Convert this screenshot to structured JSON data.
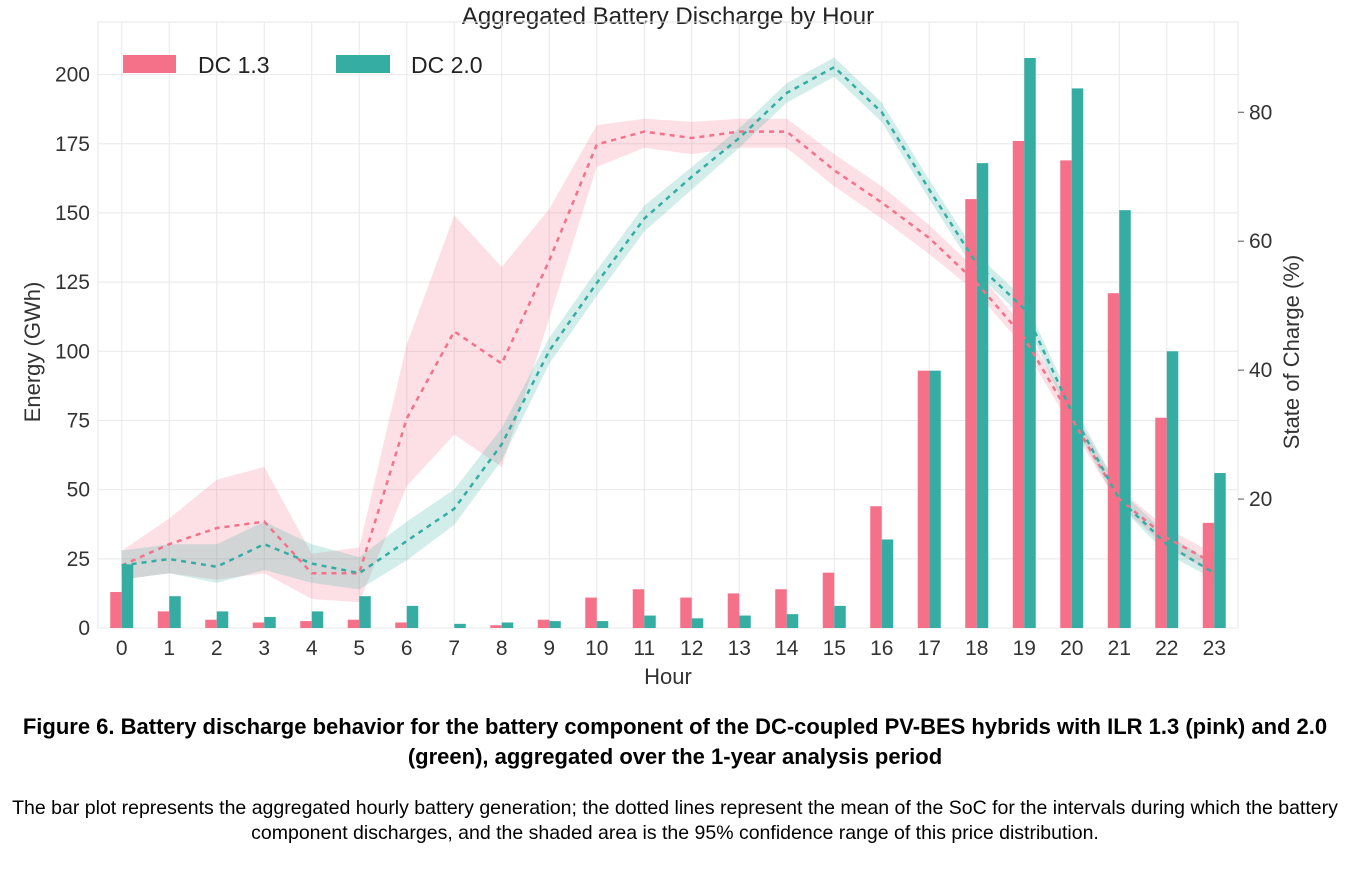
{
  "chart_data": {
    "type": "bar",
    "title": "Aggregated Battery Discharge by Hour",
    "xlabel": "Hour",
    "ylabel": "Energy (GWh)",
    "ylabel_right": "State of Charge (%)",
    "categories": [
      0,
      1,
      2,
      3,
      4,
      5,
      6,
      7,
      8,
      9,
      10,
      11,
      12,
      13,
      14,
      15,
      16,
      17,
      18,
      19,
      20,
      21,
      22,
      23
    ],
    "ylim": [
      0,
      219
    ],
    "ylim_right": [
      0,
      94
    ],
    "yticks": [
      0,
      25,
      50,
      75,
      100,
      125,
      150,
      175,
      200
    ],
    "yticks_right": [
      20,
      40,
      60,
      80
    ],
    "grid": true,
    "legend_position": "top-left",
    "series": [
      {
        "name": "DC 1.3",
        "color": "#f5718a",
        "band_color": "#f5718a",
        "values": [
          13,
          6,
          3,
          2,
          2.5,
          3,
          2,
          0,
          1,
          3,
          11,
          14,
          11,
          12.5,
          14,
          20,
          44,
          93,
          155,
          176,
          169,
          121,
          76,
          38
        ],
        "soc_mean": [
          9.7,
          13,
          15.5,
          16.5,
          8.5,
          8.5,
          32.5,
          46,
          41,
          57,
          75,
          77,
          76,
          77,
          77,
          71,
          66,
          60.5,
          53.5,
          45,
          32.5,
          20,
          14,
          10
        ],
        "soc_ci_low": [
          7.5,
          8.5,
          7.5,
          8.5,
          4.5,
          4,
          22,
          30,
          25,
          48,
          71.5,
          74.5,
          73.5,
          74.5,
          74.5,
          68.5,
          63.5,
          58,
          52,
          43.5,
          31,
          19,
          12.5,
          8.5
        ],
        "soc_ci_high": [
          12,
          17,
          23,
          25,
          11.5,
          12.5,
          44,
          64,
          56,
          65,
          78,
          79,
          78.5,
          79,
          79,
          73.5,
          68.5,
          62.5,
          55.5,
          46.5,
          34,
          21.5,
          15.5,
          11.5
        ]
      },
      {
        "name": "DC 2.0",
        "color": "#36ada3",
        "band_color": "#36ada3",
        "values": [
          23,
          11.5,
          6,
          4,
          6,
          11.5,
          8,
          1.5,
          2,
          2.5,
          2.5,
          4.5,
          3.5,
          4.5,
          5,
          8,
          32,
          93,
          168,
          206,
          195,
          151,
          100,
          56
        ],
        "soc_mean": [
          9.7,
          10.7,
          9.5,
          13,
          10,
          8.5,
          13.5,
          18.5,
          28.5,
          43,
          53.5,
          63.5,
          70,
          76,
          83,
          87,
          80,
          68,
          56.5,
          49.5,
          33.5,
          20,
          13,
          8.5
        ],
        "soc_ci_low": [
          7.5,
          8.5,
          7,
          9,
          7,
          6,
          10.5,
          16,
          26,
          41,
          51.5,
          61.5,
          68,
          74.5,
          81.5,
          85.5,
          78.5,
          66.5,
          55,
          48,
          32,
          19,
          11.5,
          7.5
        ],
        "soc_ci_high": [
          12,
          13,
          13,
          16.5,
          13,
          11,
          16.5,
          21.5,
          31,
          45,
          55.5,
          65.5,
          71.5,
          77.5,
          84.5,
          88.5,
          81.5,
          69.5,
          58,
          51,
          35,
          21.5,
          14.5,
          10
        ]
      }
    ]
  },
  "caption": {
    "title": "Figure 6. Battery discharge behavior for the battery component of the DC-coupled PV-BES hybrids with ILR 1.3 (pink) and 2.0 (green), aggregated over the 1-year analysis period",
    "body": "The bar plot represents the aggregated hourly battery generation; the dotted lines represent the mean of the SoC for the intervals during which the battery component discharges, and the shaded area is the 95% confidence range of this price distribution."
  }
}
